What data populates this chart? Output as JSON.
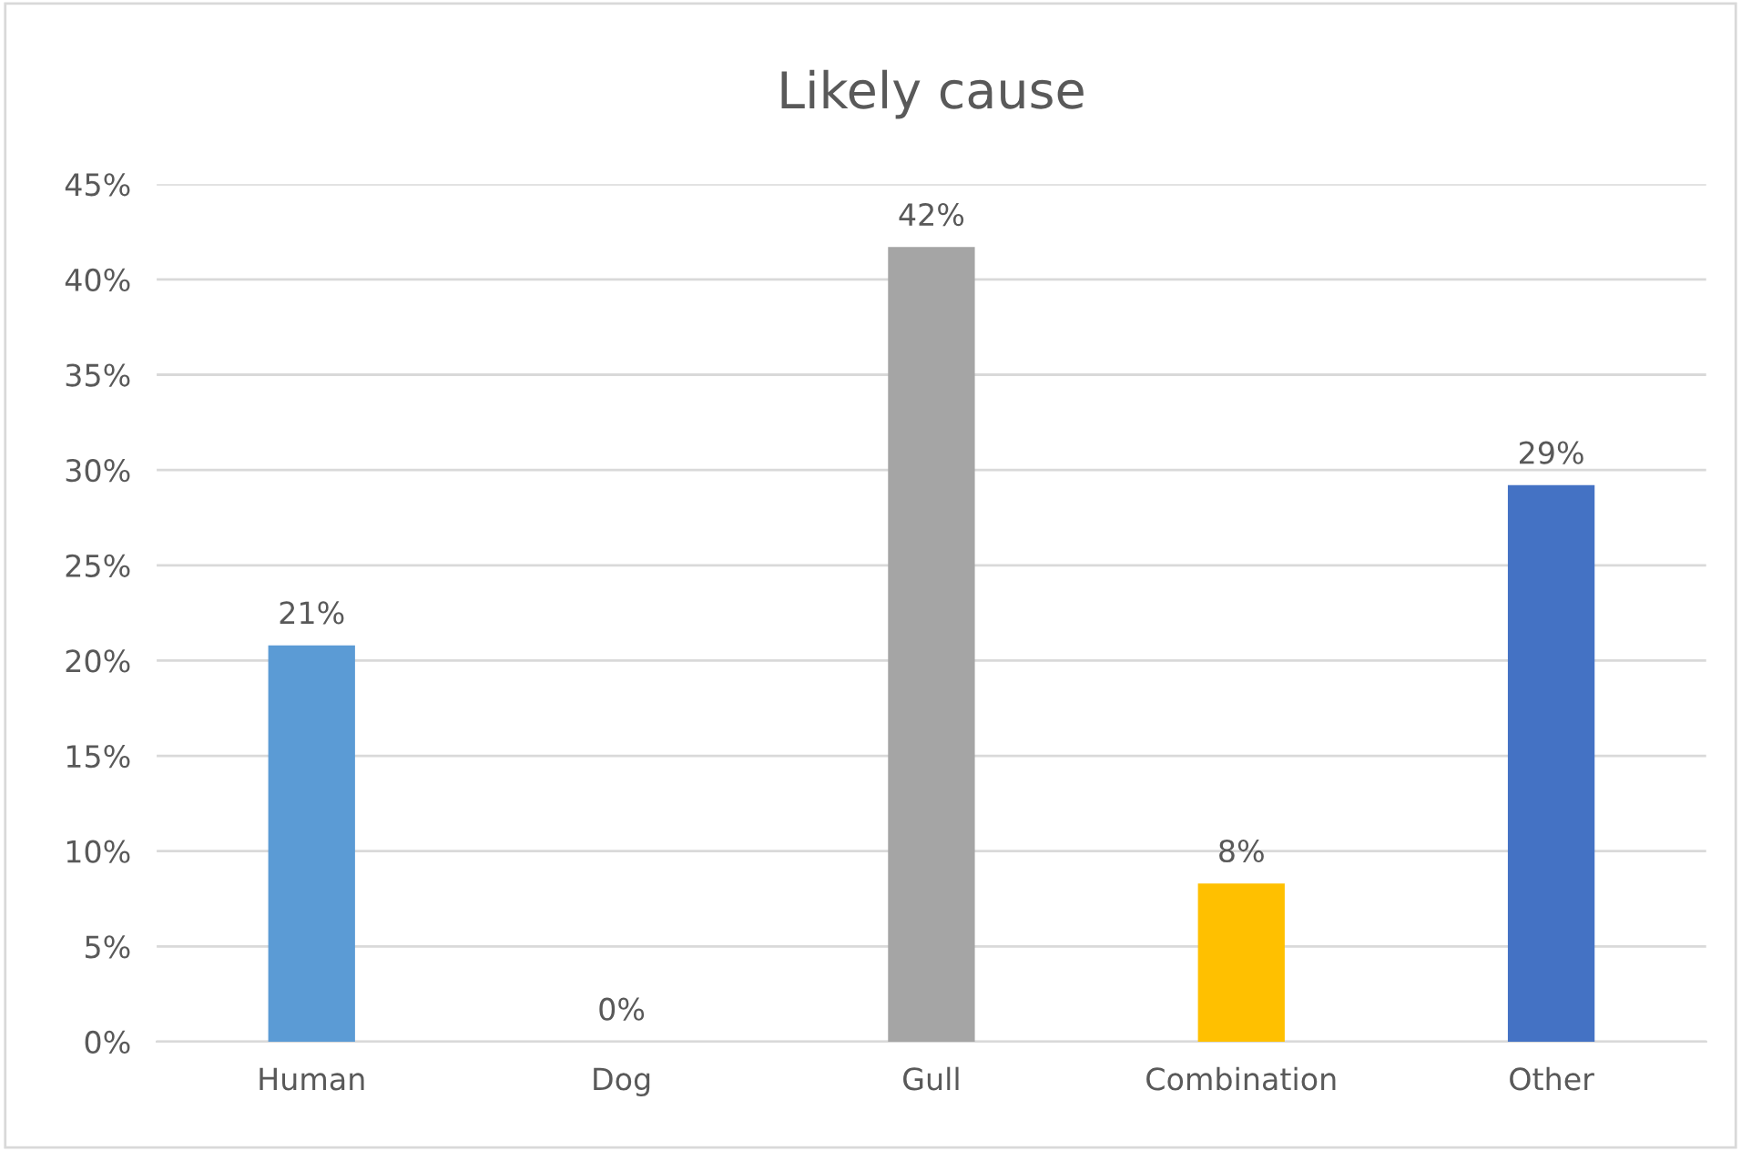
{
  "chart_data": {
    "type": "bar",
    "title": "Likely cause",
    "categories": [
      "Human",
      "Dog",
      "Gull",
      "Combination",
      "Other"
    ],
    "values": [
      20.8,
      0,
      41.7,
      8.3,
      29.2
    ],
    "colors": [
      "#5b9bd5",
      "#ed7d31",
      "#a5a5a5",
      "#ffc000",
      "#4472c4"
    ],
    "value_labels": [
      "21%",
      "0%",
      "42%",
      "8%",
      "29%"
    ],
    "ylim": [
      0,
      45
    ],
    "yticks": [
      {
        "value": 0,
        "label": "0%"
      },
      {
        "value": 5,
        "label": "5%"
      },
      {
        "value": 10,
        "label": "10%"
      },
      {
        "value": 15,
        "label": "15%"
      },
      {
        "value": 20,
        "label": "20%"
      },
      {
        "value": 25,
        "label": "25%"
      },
      {
        "value": 30,
        "label": "30%"
      },
      {
        "value": 35,
        "label": "35%"
      },
      {
        "value": 40,
        "label": "40%"
      },
      {
        "value": 45,
        "label": "45%"
      }
    ],
    "grid": "y"
  }
}
